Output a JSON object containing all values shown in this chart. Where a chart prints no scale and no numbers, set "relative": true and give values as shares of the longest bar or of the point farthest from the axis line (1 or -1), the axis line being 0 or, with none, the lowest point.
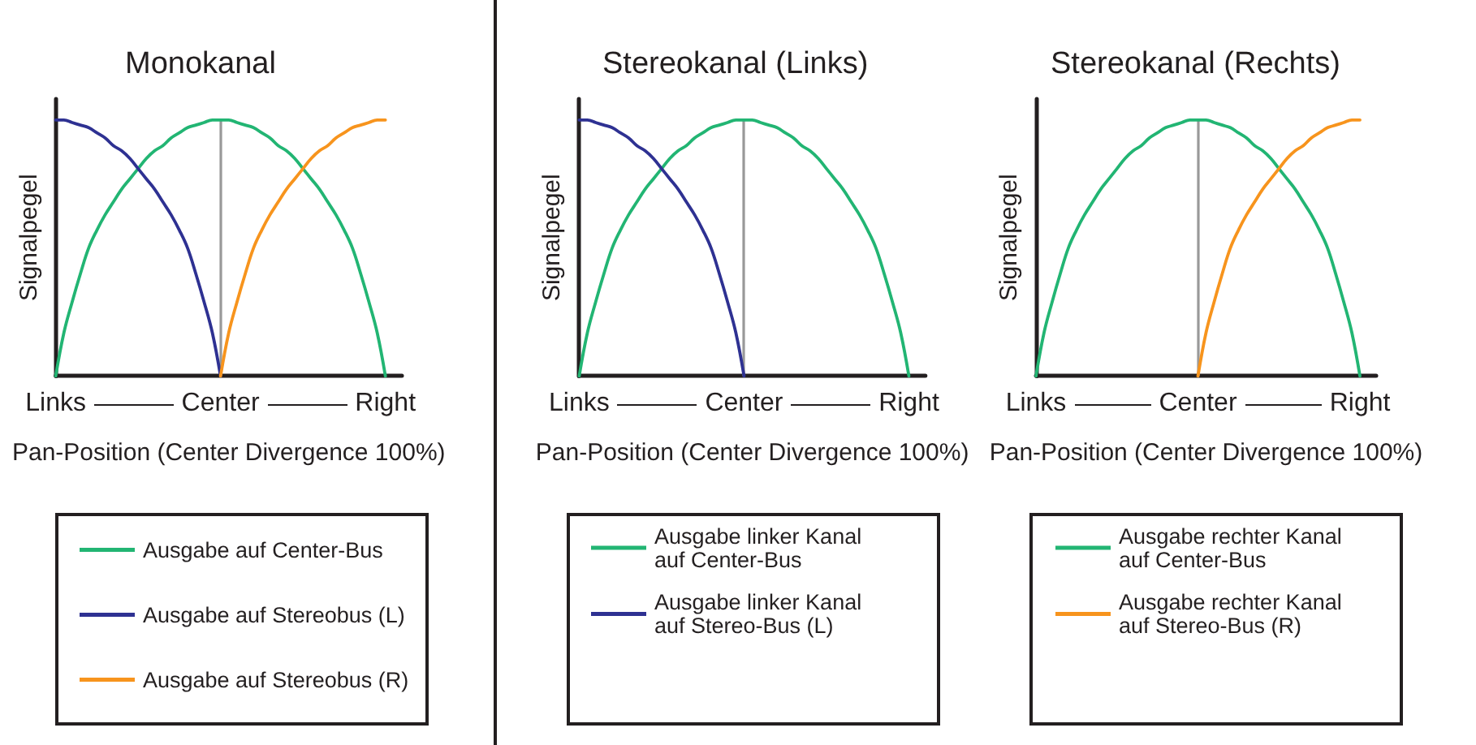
{
  "chart_data": [
    {
      "type": "line",
      "title": "Monokanal",
      "xlabel": "Pan-Position (Center Divergence 100%)",
      "ylabel": "Signalpegel",
      "relative": true,
      "legend": "bottom",
      "ref_lines": [
        {
          "axis": "x",
          "value": "Center",
          "color": "#999999"
        }
      ],
      "categories": [
        "Links",
        null,
        null,
        null,
        null,
        null,
        null,
        null,
        null,
        null,
        null,
        null,
        null,
        null,
        null,
        null,
        null,
        null,
        null,
        null,
        "Center",
        null,
        null,
        null,
        null,
        null,
        null,
        null,
        null,
        null,
        null,
        null,
        null,
        null,
        null,
        null,
        null,
        null,
        null,
        null,
        "Right",
        null,
        null
      ],
      "series": [
        {
          "name": "Ausgabe auf Center-Bus",
          "color": "#22b573",
          "values": [
            0,
            0.17,
            0.29,
            0.4,
            0.5,
            0.57,
            0.63,
            0.68,
            0.73,
            0.77,
            0.81,
            0.85,
            0.88,
            0.9,
            0.93,
            0.95,
            0.97,
            0.98,
            0.99,
            1,
            1,
            1,
            0.99,
            0.98,
            0.97,
            0.95,
            0.93,
            0.9,
            0.88,
            0.85,
            0.81,
            0.77,
            0.73,
            0.68,
            0.63,
            0.57,
            0.5,
            0.4,
            0.29,
            0.17,
            0,
            null,
            null
          ]
        },
        {
          "name": "Ausgabe auf Stereobus (L)",
          "color": "#2e3192",
          "values": [
            1,
            1,
            0.99,
            0.98,
            0.97,
            0.95,
            0.93,
            0.9,
            0.88,
            0.85,
            0.81,
            0.77,
            0.73,
            0.68,
            0.63,
            0.57,
            0.5,
            0.4,
            0.29,
            0.17,
            0,
            null,
            null,
            null,
            null,
            null,
            null,
            null,
            null,
            null,
            null,
            null,
            null,
            null,
            null,
            null,
            null,
            null,
            null,
            null,
            null,
            null,
            null
          ]
        },
        {
          "name": "Ausgabe auf Stereobus (R)",
          "color": "#f7941d",
          "values": [
            null,
            null,
            null,
            null,
            null,
            null,
            null,
            null,
            null,
            null,
            null,
            null,
            null,
            null,
            null,
            null,
            null,
            null,
            null,
            null,
            0,
            0.17,
            0.29,
            0.4,
            0.5,
            0.57,
            0.63,
            0.68,
            0.73,
            0.77,
            0.81,
            0.85,
            0.88,
            0.9,
            0.93,
            0.95,
            0.97,
            0.98,
            0.99,
            1,
            1,
            null,
            null
          ]
        }
      ]
    },
    {
      "type": "line",
      "title": "Stereokanal (Links)",
      "xlabel": "Pan-Position (Center Divergence 100%)",
      "ylabel": "Signalpegel",
      "relative": true,
      "legend": "bottom",
      "ref_lines": [
        {
          "axis": "x",
          "value": "Center",
          "color": "#999999"
        }
      ],
      "categories": [
        "Links",
        null,
        null,
        null,
        null,
        null,
        null,
        null,
        null,
        null,
        null,
        null,
        null,
        null,
        null,
        null,
        null,
        null,
        null,
        null,
        "Center",
        null,
        null,
        null,
        null,
        null,
        null,
        null,
        null,
        null,
        null,
        null,
        null,
        null,
        null,
        null,
        null,
        null,
        null,
        null,
        "Right",
        null,
        null
      ],
      "series": [
        {
          "name": "Ausgabe linker Kanal auf Center-Bus",
          "color": "#22b573",
          "values": [
            0,
            0.17,
            0.29,
            0.4,
            0.5,
            0.57,
            0.63,
            0.68,
            0.73,
            0.77,
            0.81,
            0.85,
            0.88,
            0.9,
            0.93,
            0.95,
            0.97,
            0.98,
            0.99,
            1,
            1,
            1,
            0.99,
            0.98,
            0.97,
            0.95,
            0.93,
            0.9,
            0.88,
            0.85,
            0.81,
            0.77,
            0.73,
            0.68,
            0.63,
            0.57,
            0.5,
            0.4,
            0.29,
            0.17,
            0,
            null,
            null
          ]
        },
        {
          "name": "Ausgabe linker Kanal auf Stereo-Bus (L)",
          "color": "#2e3192",
          "values": [
            1,
            1,
            0.99,
            0.98,
            0.97,
            0.95,
            0.93,
            0.9,
            0.88,
            0.85,
            0.81,
            0.77,
            0.73,
            0.68,
            0.63,
            0.57,
            0.5,
            0.4,
            0.29,
            0.17,
            0,
            null,
            null,
            null,
            null,
            null,
            null,
            null,
            null,
            null,
            null,
            null,
            null,
            null,
            null,
            null,
            null,
            null,
            null,
            null,
            null,
            null,
            null
          ]
        }
      ]
    },
    {
      "type": "line",
      "title": "Stereokanal (Rechts)",
      "xlabel": "Pan-Position (Center Divergence 100%)",
      "ylabel": "Signalpegel",
      "relative": true,
      "legend": "bottom",
      "ref_lines": [
        {
          "axis": "x",
          "value": "Center",
          "color": "#999999"
        }
      ],
      "categories": [
        "Links",
        null,
        null,
        null,
        null,
        null,
        null,
        null,
        null,
        null,
        null,
        null,
        null,
        null,
        null,
        null,
        null,
        null,
        null,
        null,
        "Center",
        null,
        null,
        null,
        null,
        null,
        null,
        null,
        null,
        null,
        null,
        null,
        null,
        null,
        null,
        null,
        null,
        null,
        null,
        null,
        "Right",
        null,
        null
      ],
      "series": [
        {
          "name": "Ausgabe rechter Kanal auf Center-Bus",
          "color": "#22b573",
          "values": [
            0,
            0.17,
            0.29,
            0.4,
            0.5,
            0.57,
            0.63,
            0.68,
            0.73,
            0.77,
            0.81,
            0.85,
            0.88,
            0.9,
            0.93,
            0.95,
            0.97,
            0.98,
            0.99,
            1,
            1,
            1,
            0.99,
            0.98,
            0.97,
            0.95,
            0.93,
            0.9,
            0.88,
            0.85,
            0.81,
            0.77,
            0.73,
            0.68,
            0.63,
            0.57,
            0.5,
            0.4,
            0.29,
            0.17,
            0,
            null,
            null
          ]
        },
        {
          "name": "Ausgabe rechter Kanal auf Stereo-Bus (R)",
          "color": "#f7941d",
          "values": [
            null,
            null,
            null,
            null,
            null,
            null,
            null,
            null,
            null,
            null,
            null,
            null,
            null,
            null,
            null,
            null,
            null,
            null,
            null,
            null,
            0,
            0.17,
            0.29,
            0.4,
            0.5,
            0.57,
            0.63,
            0.68,
            0.73,
            0.77,
            0.81,
            0.85,
            0.88,
            0.9,
            0.93,
            0.95,
            0.97,
            0.98,
            0.99,
            1,
            1,
            null,
            null
          ]
        }
      ]
    }
  ]
}
